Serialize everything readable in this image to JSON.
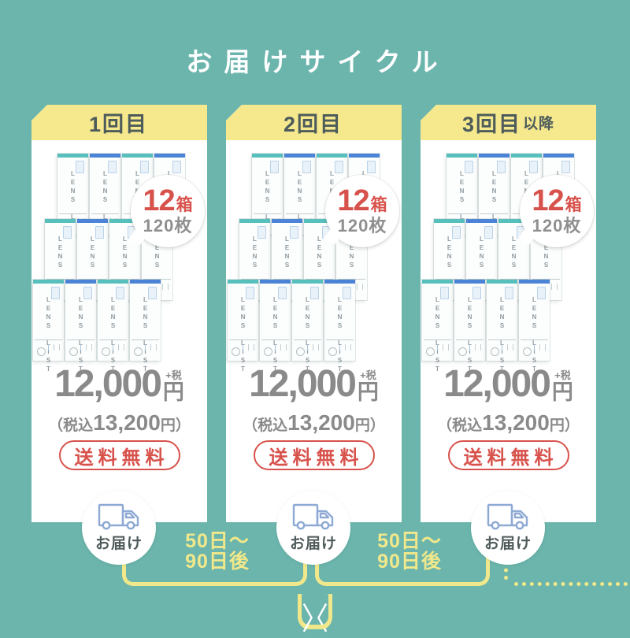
{
  "title": {
    "bracket_left": "〈",
    "text": "お届けサイクル",
    "bracket_right": "〉"
  },
  "colors": {
    "bg_teal": "#6bb5ad",
    "header_yellow": "#f5e88d",
    "header_text": "#4d5b5b",
    "accent_red": "#d8524c",
    "gray_text": "#8a8a8a",
    "line_yellow": "#f0e88a",
    "truck_blue": "#8ea9d4",
    "strip_teal": "#57c0bd",
    "strip_blue": "#4b83d6",
    "lens_text": "#8f9ba0"
  },
  "cards": [
    {
      "header": "1回目",
      "header_suffix": "",
      "badge": {
        "count": "12",
        "count_unit": "箱",
        "sheets": "120枚"
      },
      "price": {
        "amount": "12,000",
        "plus_tax": "+税",
        "yen": "円",
        "tax_incl_prefix": "（税込",
        "tax_incl_amount": "13,200",
        "tax_incl_suffix": "円）"
      },
      "shipping_label": "送料無料",
      "delivery_label": "お届け"
    },
    {
      "header": "2回目",
      "header_suffix": "",
      "badge": {
        "count": "12",
        "count_unit": "箱",
        "sheets": "120枚"
      },
      "price": {
        "amount": "12,000",
        "plus_tax": "+税",
        "yen": "円",
        "tax_incl_prefix": "（税込",
        "tax_incl_amount": "13,200",
        "tax_incl_suffix": "円）"
      },
      "shipping_label": "送料無料",
      "delivery_label": "お届け"
    },
    {
      "header": "3回目",
      "header_suffix": "以降",
      "badge": {
        "count": "12",
        "count_unit": "箱",
        "sheets": "120枚"
      },
      "price": {
        "amount": "12,000",
        "plus_tax": "+税",
        "yen": "円",
        "tax_incl_prefix": "（税込",
        "tax_incl_amount": "13,200",
        "tax_incl_suffix": "円）"
      },
      "shipping_label": "送料無料",
      "delivery_label": "お届け"
    }
  ],
  "intervals": [
    {
      "line1": "50日〜",
      "line2": "90日後"
    },
    {
      "line1": "50日〜",
      "line2": "90日後"
    }
  ],
  "lens_box": {
    "label": "LENS LIST",
    "rows": 3,
    "per_row": 4,
    "strip_pattern": [
      "teal",
      "blue",
      "teal",
      "blue"
    ]
  }
}
